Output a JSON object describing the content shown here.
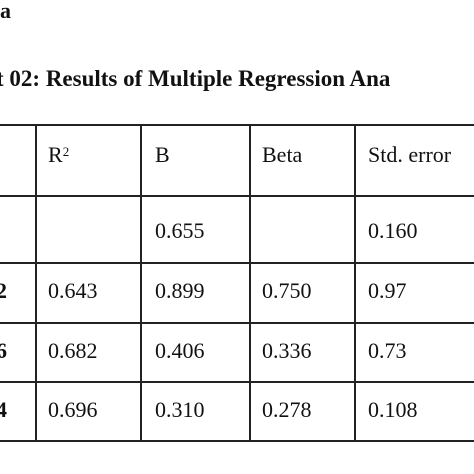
{
  "header": {
    "fragment": "a",
    "title": "t 02: Results of Multiple Regression Ana"
  },
  "table": {
    "columns": [
      null,
      {
        "text": "R",
        "sup": "2"
      },
      "B",
      "Beta",
      "Std. error"
    ],
    "rows": [
      [
        null,
        null,
        "0.655",
        null,
        "0.160"
      ],
      [
        "2",
        "0.643",
        "0.899",
        "0.750",
        "0.97"
      ],
      [
        "6",
        "0.682",
        "0.406",
        "0.336",
        "0.73"
      ],
      [
        "4",
        "0.696",
        "0.310",
        "0.278",
        "0.108"
      ]
    ]
  }
}
